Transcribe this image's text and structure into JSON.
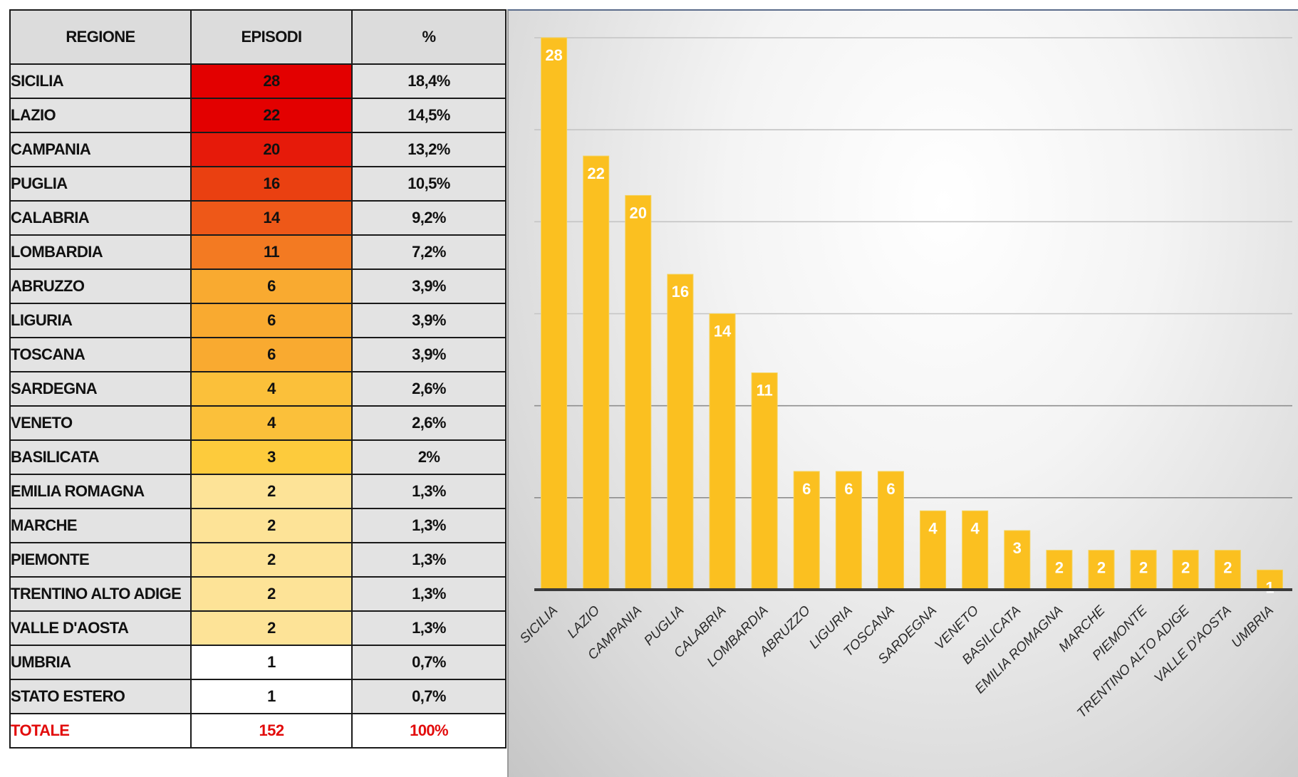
{
  "table": {
    "headers": {
      "region": "REGIONE",
      "episodes": "EPISODI",
      "percent": "%"
    },
    "rows": [
      {
        "region": "SICILIA",
        "episodes": "28",
        "percent": "18,4%",
        "color": "#e30000"
      },
      {
        "region": "LAZIO",
        "episodes": "22",
        "percent": "14,5%",
        "color": "#e30000"
      },
      {
        "region": "CAMPANIA",
        "episodes": "20",
        "percent": "13,2%",
        "color": "#e61a0a"
      },
      {
        "region": "PUGLIA",
        "episodes": "16",
        "percent": "10,5%",
        "color": "#ea4011"
      },
      {
        "region": "CALABRIA",
        "episodes": "14",
        "percent": "9,2%",
        "color": "#ee5818"
      },
      {
        "region": "LOMBARDIA",
        "episodes": "11",
        "percent": "7,2%",
        "color": "#f37a22"
      },
      {
        "region": "ABRUZZO",
        "episodes": "6",
        "percent": "3,9%",
        "color": "#f9aa30"
      },
      {
        "region": "LIGURIA",
        "episodes": "6",
        "percent": "3,9%",
        "color": "#f9aa30"
      },
      {
        "region": "TOSCANA",
        "episodes": "6",
        "percent": "3,9%",
        "color": "#f9aa30"
      },
      {
        "region": "SARDEGNA",
        "episodes": "4",
        "percent": "2,6%",
        "color": "#fbc03a"
      },
      {
        "region": "VENETO",
        "episodes": "4",
        "percent": "2,6%",
        "color": "#fbc03a"
      },
      {
        "region": "BASILICATA",
        "episodes": "3",
        "percent": "2%",
        "color": "#fdcb3c"
      },
      {
        "region": "EMILIA ROMAGNA",
        "episodes": "2",
        "percent": "1,3%",
        "color": "#fde397"
      },
      {
        "region": "MARCHE",
        "episodes": "2",
        "percent": "1,3%",
        "color": "#fde397"
      },
      {
        "region": "PIEMONTE",
        "episodes": "2",
        "percent": "1,3%",
        "color": "#fde397"
      },
      {
        "region": "TRENTINO ALTO ADIGE",
        "episodes": "2",
        "percent": "1,3%",
        "color": "#fde397"
      },
      {
        "region": "VALLE D'AOSTA",
        "episodes": "2",
        "percent": "1,3%",
        "color": "#fde397"
      },
      {
        "region": "UMBRIA",
        "episodes": "1",
        "percent": "0,7%",
        "color": "#ffffff"
      },
      {
        "region": "STATO ESTERO",
        "episodes": "1",
        "percent": "0,7%",
        "color": "#ffffff"
      }
    ],
    "total": {
      "region": "TOTALE",
      "episodes": "152",
      "percent": "100%",
      "color": "#e20b0b"
    }
  },
  "chart_data": {
    "type": "bar",
    "title": "",
    "xlabel": "",
    "ylabel": "",
    "ylim": [
      0,
      28
    ],
    "grid": true,
    "legend": "none",
    "bar_color": "#fbc020",
    "label_color": "#ffffff",
    "categories": [
      "SICILIA",
      "LAZIO",
      "CAMPANIA",
      "PUGLIA",
      "CALABRIA",
      "LOMBARDIA",
      "ABRUZZO",
      "LIGURIA",
      "TOSCANA",
      "SARDEGNA",
      "VENETO",
      "BASILICATA",
      "EMILIA ROMAGNA",
      "MARCHE",
      "PIEMONTE",
      "TRENTINO ALTO ADIGE",
      "VALLE D'AOSTA",
      "UMBRIA"
    ],
    "values": [
      28,
      22,
      20,
      16,
      14,
      11,
      6,
      6,
      6,
      4,
      4,
      3,
      2,
      2,
      2,
      2,
      2,
      1
    ],
    "data_labels": [
      "28",
      "22",
      "20",
      "16",
      "14",
      "11",
      "6",
      "6",
      "6",
      "4",
      "4",
      "3",
      "2",
      "2",
      "2",
      "2",
      "2",
      "1"
    ]
  }
}
